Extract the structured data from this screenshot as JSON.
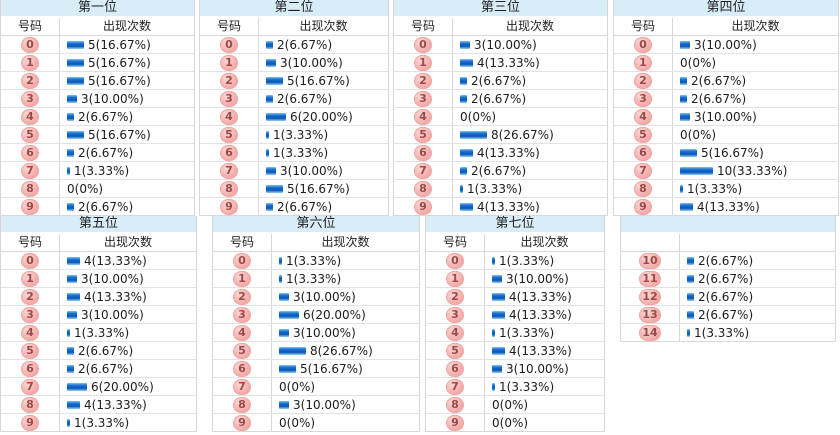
{
  "headers": {
    "number_label": "号码",
    "count_label": "出现次数"
  },
  "palette": {
    "title_bg": "#d8edf8",
    "border": "#d8d8d8",
    "badge_bg": "#f5b3b0",
    "badge_text": "#9a4a48",
    "bar_blue": "#0a55b5",
    "text": "#1c1c1c"
  },
  "chart_data": [
    {
      "type": "bar",
      "title": "第一位",
      "header_number": "号码",
      "header_count": "出现次数",
      "categories": [
        0,
        1,
        2,
        3,
        4,
        5,
        6,
        7,
        8,
        9
      ],
      "values": [
        5,
        5,
        5,
        3,
        2,
        5,
        2,
        1,
        0,
        2
      ],
      "labels": [
        "5(16.67%)",
        "5(16.67%)",
        "5(16.67%)",
        "3(10.00%)",
        "2(6.67%)",
        "5(16.67%)",
        "2(6.67%)",
        "1(3.33%)",
        "0(0%)",
        "2(6.67%)"
      ],
      "xlabel": "",
      "ylabel": "",
      "legend": "none"
    },
    {
      "type": "bar",
      "title": "第二位",
      "header_number": "号码",
      "header_count": "出现次数",
      "categories": [
        0,
        1,
        2,
        3,
        4,
        5,
        6,
        7,
        8,
        9
      ],
      "values": [
        2,
        3,
        5,
        2,
        6,
        1,
        1,
        3,
        5,
        2
      ],
      "labels": [
        "2(6.67%)",
        "3(10.00%)",
        "5(16.67%)",
        "2(6.67%)",
        "6(20.00%)",
        "1(3.33%)",
        "1(3.33%)",
        "3(10.00%)",
        "5(16.67%)",
        "2(6.67%)"
      ],
      "xlabel": "",
      "ylabel": "",
      "legend": "none"
    },
    {
      "type": "bar",
      "title": "第三位",
      "header_number": "号码",
      "header_count": "出现次数",
      "categories": [
        0,
        1,
        2,
        3,
        4,
        5,
        6,
        7,
        8,
        9
      ],
      "values": [
        3,
        4,
        2,
        2,
        0,
        8,
        4,
        2,
        1,
        4
      ],
      "labels": [
        "3(10.00%)",
        "4(13.33%)",
        "2(6.67%)",
        "2(6.67%)",
        "0(0%)",
        "8(26.67%)",
        "4(13.33%)",
        "2(6.67%)",
        "1(3.33%)",
        "4(13.33%)"
      ],
      "xlabel": "",
      "ylabel": "",
      "legend": "none"
    },
    {
      "type": "bar",
      "title": "第四位",
      "header_number": "号码",
      "header_count": "出现次数",
      "categories": [
        0,
        1,
        2,
        3,
        4,
        5,
        6,
        7,
        8,
        9
      ],
      "values": [
        3,
        0,
        2,
        2,
        3,
        0,
        5,
        10,
        1,
        4
      ],
      "labels": [
        "3(10.00%)",
        "0(0%)",
        "2(6.67%)",
        "2(6.67%)",
        "3(10.00%)",
        "0(0%)",
        "5(16.67%)",
        "10(33.33%)",
        "1(3.33%)",
        "4(13.33%)"
      ],
      "xlabel": "",
      "ylabel": "",
      "legend": "none"
    },
    {
      "type": "bar",
      "title": "第五位",
      "header_number": "号码",
      "header_count": "出现次数",
      "categories": [
        0,
        1,
        2,
        3,
        4,
        5,
        6,
        7,
        8,
        9
      ],
      "values": [
        4,
        3,
        4,
        3,
        1,
        2,
        2,
        6,
        4,
        1
      ],
      "labels": [
        "4(13.33%)",
        "3(10.00%)",
        "4(13.33%)",
        "3(10.00%)",
        "1(3.33%)",
        "2(6.67%)",
        "2(6.67%)",
        "6(20.00%)",
        "4(13.33%)",
        "1(3.33%)"
      ],
      "xlabel": "",
      "ylabel": "",
      "legend": "none"
    },
    {
      "type": "bar",
      "title": "第六位",
      "header_number": "号码",
      "header_count": "出现次数",
      "categories": [
        0,
        1,
        2,
        3,
        4,
        5,
        6,
        7,
        8,
        9
      ],
      "values": [
        1,
        1,
        3,
        6,
        3,
        8,
        5,
        0,
        3,
        0
      ],
      "labels": [
        "1(3.33%)",
        "1(3.33%)",
        "3(10.00%)",
        "6(20.00%)",
        "3(10.00%)",
        "8(26.67%)",
        "5(16.67%)",
        "0(0%)",
        "3(10.00%)",
        "0(0%)"
      ],
      "xlabel": "",
      "ylabel": "",
      "legend": "none"
    },
    {
      "type": "bar",
      "title": "第七位",
      "header_number": "号码",
      "header_count": "出现次数",
      "categories": [
        0,
        1,
        2,
        3,
        4,
        5,
        6,
        7,
        8,
        9
      ],
      "values": [
        1,
        3,
        4,
        4,
        1,
        4,
        3,
        1,
        0,
        0
      ],
      "labels": [
        "1(3.33%)",
        "3(10.00%)",
        "4(13.33%)",
        "4(13.33%)",
        "1(3.33%)",
        "4(13.33%)",
        "3(10.00%)",
        "1(3.33%)",
        "0(0%)",
        "0(0%)"
      ],
      "xlabel": "",
      "ylabel": "",
      "legend": "none"
    },
    {
      "type": "bar",
      "title": "",
      "header_number": "",
      "header_count": "",
      "categories": [
        10,
        11,
        12,
        13,
        14
      ],
      "values": [
        2,
        2,
        2,
        2,
        1
      ],
      "labels": [
        "2(6.67%)",
        "2(6.67%)",
        "2(6.67%)",
        "2(6.67%)",
        "1(3.33%)"
      ],
      "xlabel": "",
      "ylabel": "",
      "legend": "none"
    }
  ]
}
